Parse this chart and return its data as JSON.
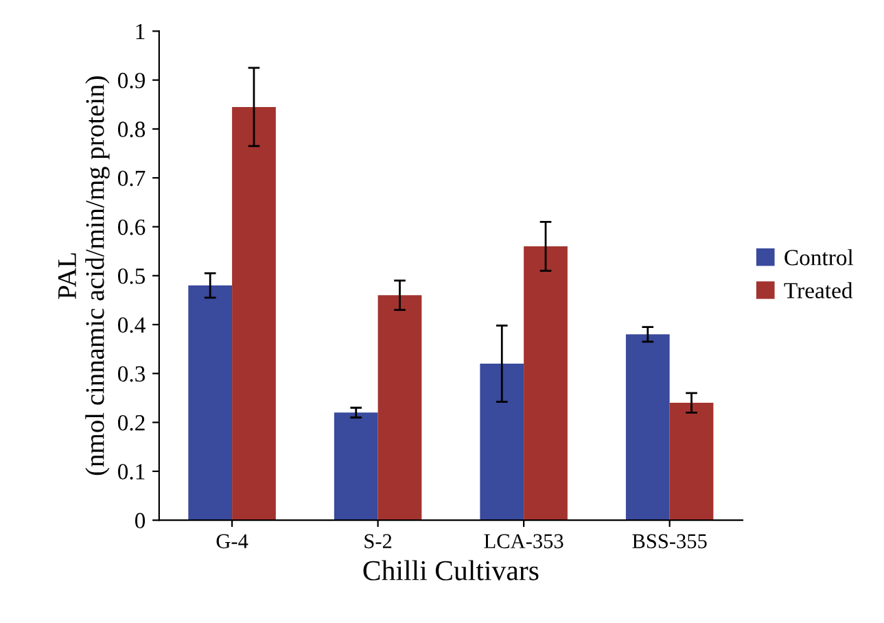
{
  "chart_data": {
    "type": "bar",
    "xlabel": "Chilli Cultivars",
    "ylabel": "PAL\n(nmol cinnamic acid/min/mg protein)",
    "categories": [
      "G-4",
      "S-2",
      "LCA-353",
      "BSS-355"
    ],
    "series": [
      {
        "name": "Control",
        "color": "#3a4a9c",
        "values": [
          0.48,
          0.22,
          0.32,
          0.38
        ],
        "errors": [
          0.025,
          0.01,
          0.078,
          0.015
        ]
      },
      {
        "name": "Treated",
        "color": "#a3332e",
        "values": [
          0.845,
          0.46,
          0.56,
          0.24
        ],
        "errors": [
          0.08,
          0.03,
          0.05,
          0.02
        ]
      }
    ],
    "ylim": [
      0,
      1
    ],
    "yticks": [
      0,
      0.1,
      0.2,
      0.3,
      0.4,
      0.5,
      0.6,
      0.7,
      0.8,
      0.9,
      1
    ],
    "grid": false,
    "legend": "right"
  }
}
